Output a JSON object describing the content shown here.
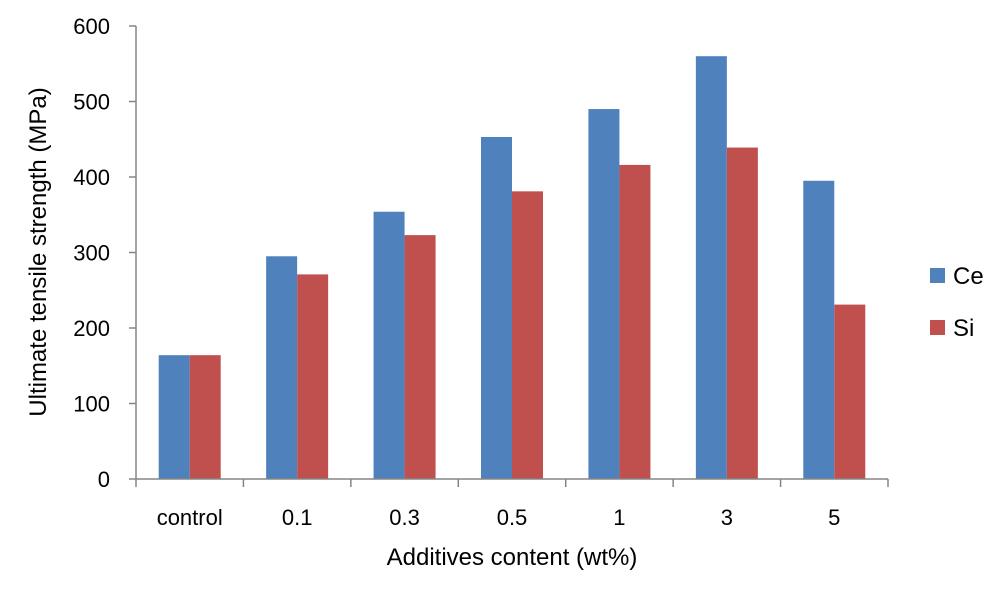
{
  "chart_data": {
    "type": "bar",
    "title": "",
    "xlabel": "Additives content (wt%)",
    "ylabel": "Ultimate tensile strength (MPa)",
    "categories": [
      "control",
      "0.1",
      "0.3",
      "0.5",
      "1",
      "3",
      "5"
    ],
    "ylim": [
      0,
      600
    ],
    "yticks": [
      0,
      100,
      200,
      300,
      400,
      500,
      600
    ],
    "grid": false,
    "legend_position": "right",
    "series": [
      {
        "name": "Ce",
        "color": "#4F81BD",
        "values": [
          164,
          295,
          354,
          453,
          490,
          560,
          395
        ]
      },
      {
        "name": "Si",
        "color": "#C0504D",
        "values": [
          164,
          271,
          323,
          381,
          416,
          439,
          231
        ]
      }
    ]
  }
}
